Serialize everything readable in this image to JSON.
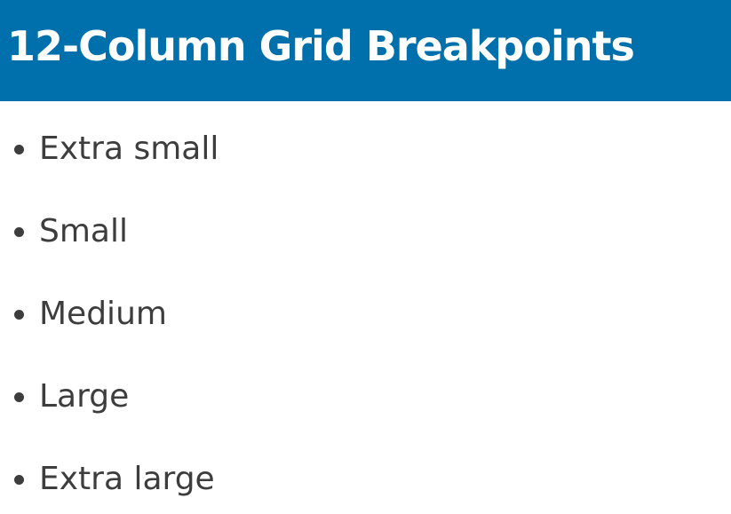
{
  "header": {
    "title": "12-Column Grid Breakpoints",
    "background_color": "#0070ac",
    "text_color": "#ffffff"
  },
  "list": {
    "items": [
      {
        "label": "Extra small"
      },
      {
        "label": "Small"
      },
      {
        "label": "Medium"
      },
      {
        "label": "Large"
      },
      {
        "label": "Extra large"
      }
    ],
    "text_color": "#3d3d3d"
  }
}
